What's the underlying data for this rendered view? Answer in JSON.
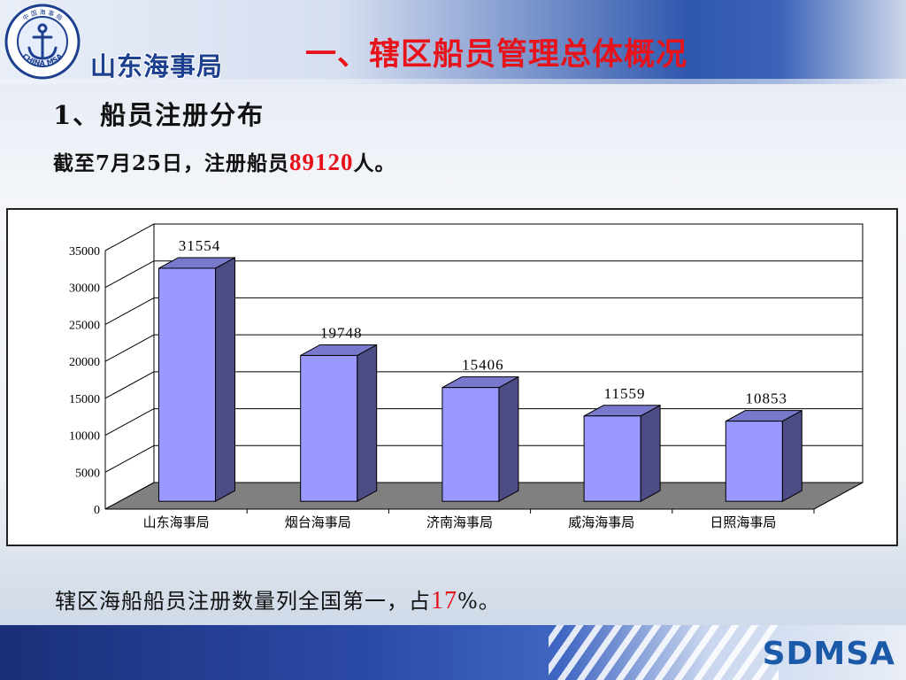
{
  "header": {
    "logo_text": "山东海事局",
    "logo_seal_top": "中 国 海 事 局",
    "logo_seal_bottom": "CHINA MSA",
    "title": "一、辖区船员管理总体概况"
  },
  "section": {
    "heading": "1、船员注册分布",
    "summary_prefix": "截至7月25日，注册船员",
    "summary_value": "89120",
    "summary_suffix": "人。"
  },
  "footer": {
    "text_prefix": "辖区海船船员注册数量列全国第一，占",
    "text_value": "17",
    "text_suffix": "%。",
    "brand": "SDMSA"
  },
  "colors": {
    "title_red": "#e8131a",
    "bar_front": "#9999ff",
    "bar_side": "#4d4d85",
    "bar_top": "#7878cc",
    "floor": "#808080",
    "brand_blue": "#1a5aa8"
  },
  "chart_data": {
    "type": "bar",
    "style": "3d",
    "categories": [
      "山东海事局",
      "烟台海事局",
      "济南海事局",
      "威海海事局",
      "日照海事局"
    ],
    "values": [
      31554,
      19748,
      15406,
      11559,
      10853
    ],
    "data_labels": [
      "31554",
      "19748",
      "15406",
      "11559",
      "10853"
    ],
    "yticks": [
      "0",
      "5000",
      "10000",
      "15000",
      "20000",
      "25000",
      "30000",
      "35000"
    ],
    "ylim": [
      0,
      35000
    ],
    "grid": true,
    "legend": "none"
  }
}
